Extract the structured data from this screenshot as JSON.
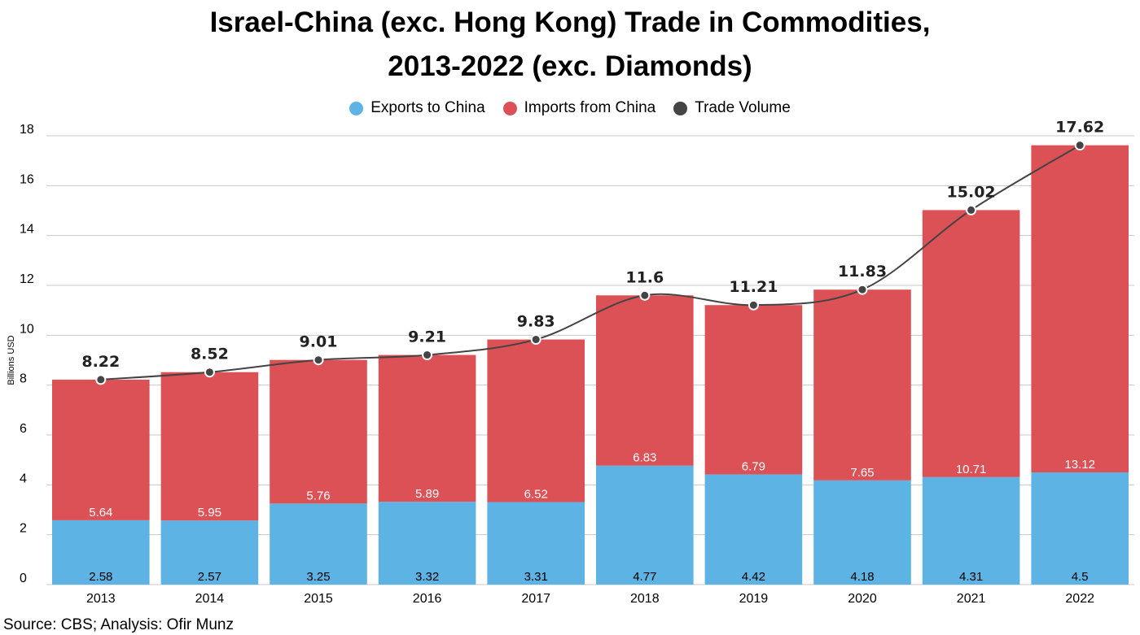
{
  "title_line1": "Israel-China (exc. Hong Kong) Trade in Commodities,",
  "title_line2": "2013-2022 (exc. Diamonds)",
  "source": "Source: CBS; Analysis: Ofir Munz",
  "colors": {
    "exports": "#5db3e4",
    "imports": "#dc5155",
    "volume": "#444444",
    "grid": "#c8c8c8"
  },
  "chart_data": {
    "type": "bar",
    "stacked": true,
    "title": "Israel-China (exc. Hong Kong) Trade in Commodities, 2013-2022 (exc. Diamonds)",
    "xlabel": "",
    "ylabel": "Billions USD",
    "ylim": [
      0,
      18
    ],
    "yticks": [
      0,
      2,
      4,
      6,
      8,
      10,
      12,
      14,
      16,
      18
    ],
    "grid": true,
    "legend_position": "top",
    "categories": [
      "2013",
      "2014",
      "2015",
      "2016",
      "2017",
      "2018",
      "2019",
      "2020",
      "2021",
      "2022"
    ],
    "series": [
      {
        "name": "Exports to China",
        "type": "bar",
        "values": [
          2.58,
          2.57,
          3.25,
          3.32,
          3.31,
          4.77,
          4.42,
          4.18,
          4.31,
          4.5
        ]
      },
      {
        "name": "Imports from China",
        "type": "bar",
        "values": [
          5.64,
          5.95,
          5.76,
          5.89,
          6.52,
          6.83,
          6.79,
          7.65,
          10.71,
          13.12
        ]
      },
      {
        "name": "Trade Volume",
        "type": "line",
        "values": [
          8.22,
          8.52,
          9.01,
          9.21,
          9.83,
          11.6,
          11.21,
          11.83,
          15.02,
          17.62
        ]
      }
    ]
  }
}
